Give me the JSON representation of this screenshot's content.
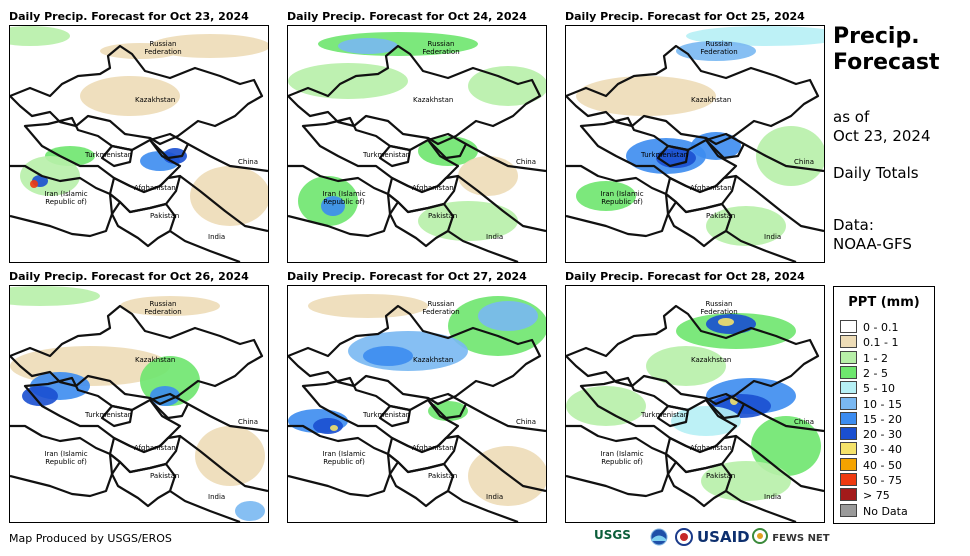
{
  "panels": [
    {
      "title": "Daily Precip. Forecast for Oct 23, 2024"
    },
    {
      "title": "Daily Precip. Forecast for Oct 24, 2024"
    },
    {
      "title": "Daily Precip. Forecast for Oct 25, 2024"
    },
    {
      "title": "Daily Precip. Forecast for Oct 26, 2024"
    },
    {
      "title": "Daily Precip. Forecast for Oct 27, 2024"
    },
    {
      "title": "Daily Precip. Forecast for Oct 28, 2024"
    }
  ],
  "map_labels": {
    "russia": "Russian Federation",
    "kazakhstan": "Kazakhstan",
    "turkmenistan": "Turkmenistan",
    "china": "China",
    "iran": "Iran  (Islamic Republic of)",
    "afghanistan": "Afghanistan",
    "pakistan": "Pakistan",
    "india": "India"
  },
  "side": {
    "title": "Precip. Forecast",
    "as_of_label": "as of",
    "as_of_date": "Oct 23, 2024",
    "totals": "Daily Totals",
    "data_label": "Data:",
    "data_source": "NOAA-GFS"
  },
  "legend": {
    "title": "PPT (mm)",
    "items": [
      {
        "label": "0 - 0.1",
        "color": "#ffffff"
      },
      {
        "label": "0.1 - 1",
        "color": "#eddcb7"
      },
      {
        "label": "1 - 2",
        "color": "#b7efa8"
      },
      {
        "label": "2 - 5",
        "color": "#6ee66e"
      },
      {
        "label": "5 - 10",
        "color": "#b6f0f5"
      },
      {
        "label": "10 - 15",
        "color": "#79b8f2"
      },
      {
        "label": "15 - 20",
        "color": "#3c8cf0"
      },
      {
        "label": "20 - 30",
        "color": "#1a4fd0"
      },
      {
        "label": "30 - 40",
        "color": "#f4e26a"
      },
      {
        "label": "40 - 50",
        "color": "#f5a300"
      },
      {
        "label": "50 - 75",
        "color": "#ee3a10"
      },
      {
        "label": "> 75",
        "color": "#a31a1a"
      },
      {
        "label": "No Data",
        "color": "#9a9a9a"
      }
    ]
  },
  "credit": "Map Produced by USGS/EROS",
  "logos": {
    "usgs": "USGS",
    "usaid": "USAID",
    "fews": "FEWS NET"
  }
}
